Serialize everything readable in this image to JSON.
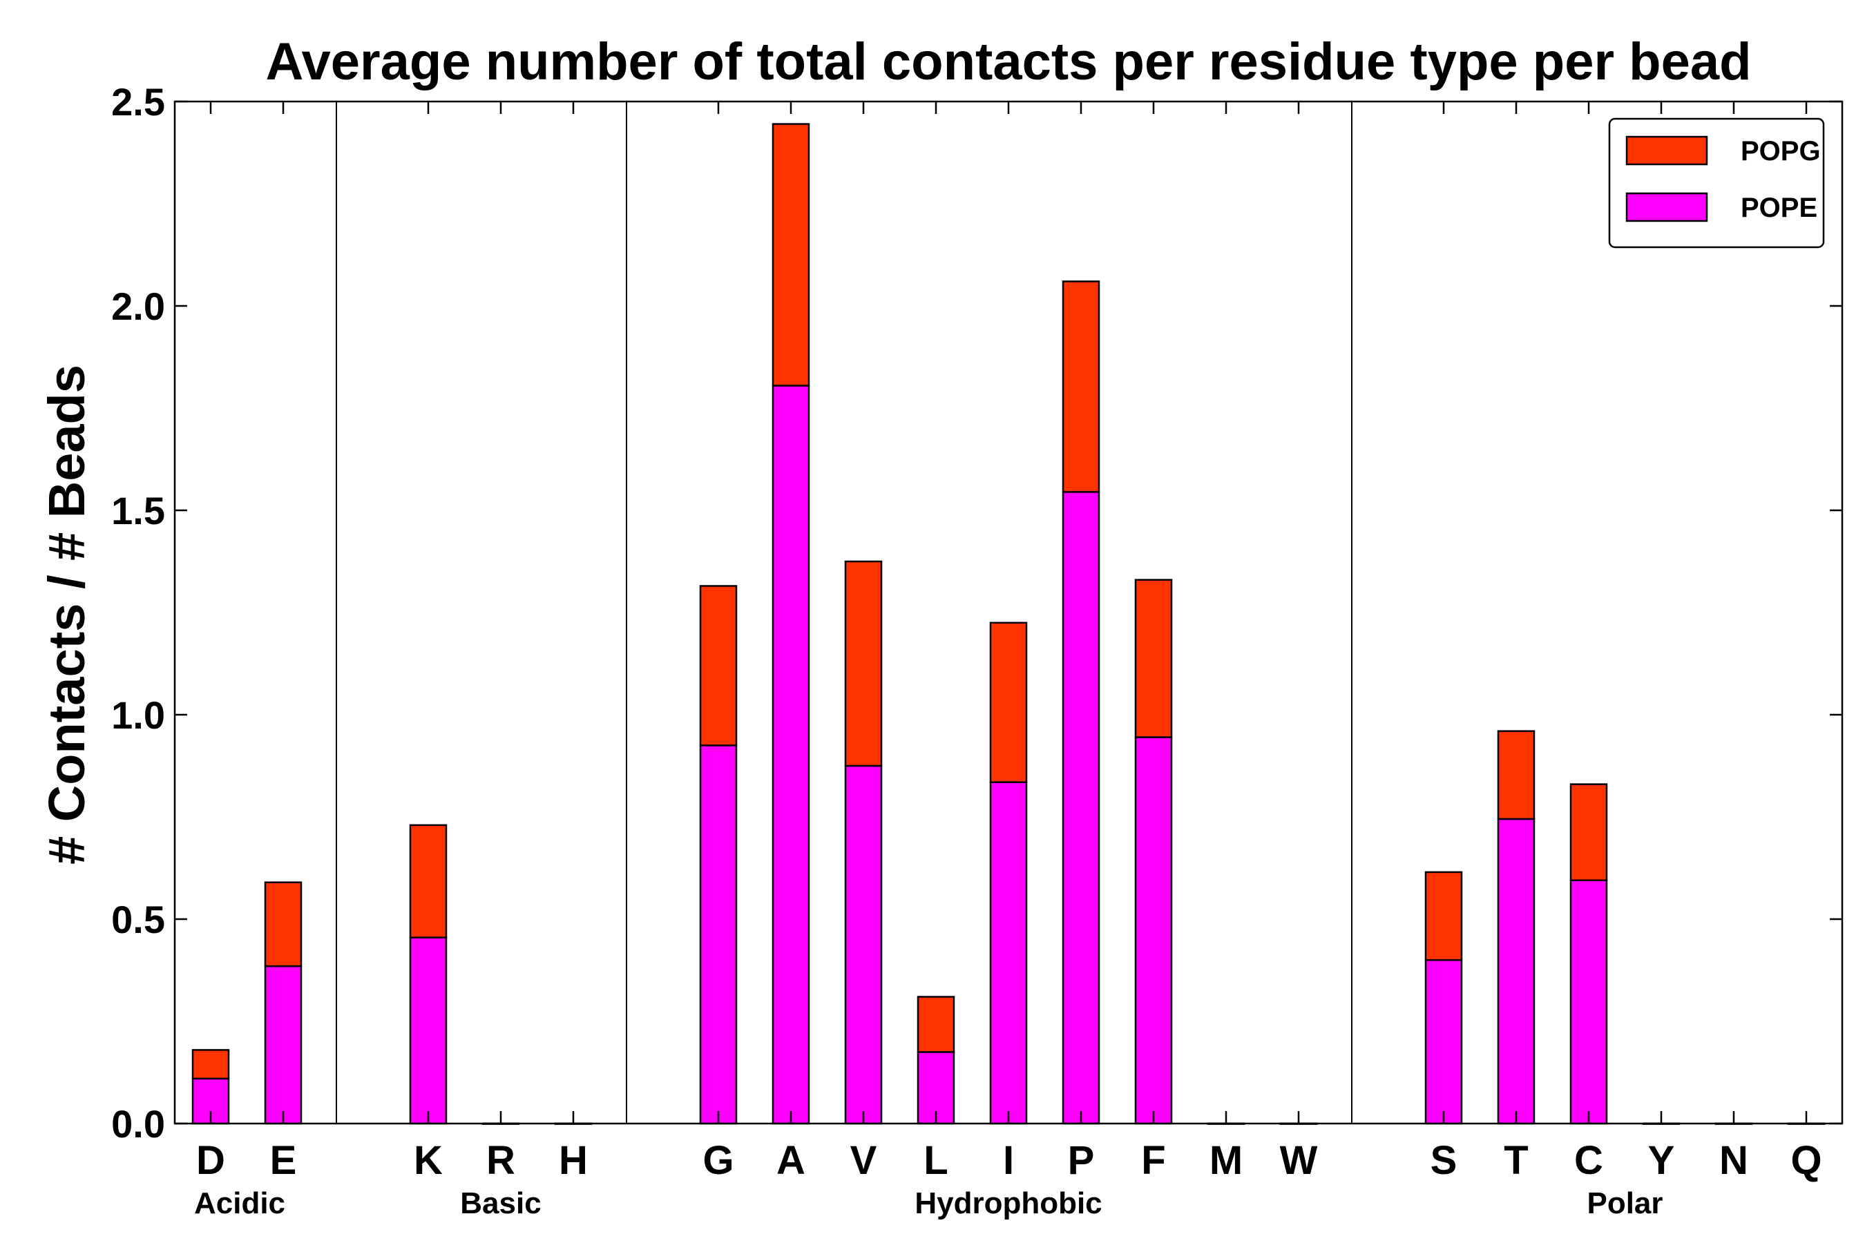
{
  "chart_data": {
    "type": "bar",
    "stacked": true,
    "title": "Average number of total contacts per residue type per bead",
    "xlabel": "",
    "ylabel": "# Contacts / # Beads",
    "ylim": [
      0,
      2.5
    ],
    "yticks": [
      "0.0",
      "0.5",
      "1.0",
      "1.5",
      "2.0",
      "2.5"
    ],
    "legend_position": "top-right",
    "categories": [
      "D",
      "E",
      "K",
      "R",
      "H",
      "G",
      "A",
      "V",
      "L",
      "I",
      "P",
      "F",
      "M",
      "W",
      "S",
      "T",
      "C",
      "Y",
      "N",
      "Q"
    ],
    "groups": [
      {
        "name": "Acidic",
        "members": [
          "D",
          "E"
        ]
      },
      {
        "name": "Basic",
        "members": [
          "K",
          "R",
          "H"
        ]
      },
      {
        "name": "Hydrophobic",
        "members": [
          "G",
          "A",
          "V",
          "L",
          "I",
          "P",
          "F",
          "M",
          "W"
        ]
      },
      {
        "name": "Polar",
        "members": [
          "S",
          "T",
          "C",
          "Y",
          "N",
          "Q"
        ]
      }
    ],
    "series": [
      {
        "name": "POPE",
        "color": "#ff00ff",
        "values": [
          0.11,
          0.385,
          0.455,
          0,
          0,
          0.925,
          1.805,
          0.875,
          0.175,
          0.835,
          1.545,
          0.945,
          0,
          0,
          0.4,
          0.745,
          0.595,
          0,
          0,
          0
        ]
      },
      {
        "name": "POPG",
        "color": "#ff3300",
        "values": [
          0.07,
          0.205,
          0.275,
          0,
          0,
          0.39,
          0.64,
          0.5,
          0.135,
          0.39,
          0.515,
          0.385,
          0,
          0,
          0.215,
          0.215,
          0.235,
          0,
          0,
          0
        ]
      }
    ],
    "legend": [
      {
        "label": "POPG",
        "color": "#ff3300"
      },
      {
        "label": "POPE",
        "color": "#ff00ff"
      }
    ]
  }
}
